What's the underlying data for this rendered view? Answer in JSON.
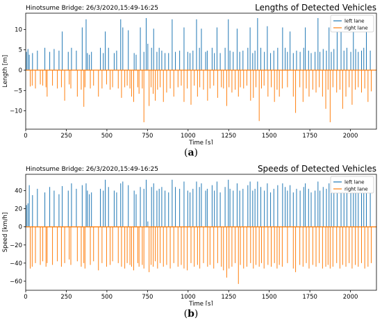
{
  "panels": [
    {
      "label_open": "(",
      "label_letter": "a",
      "label_close": ")"
    },
    {
      "label_open": "(",
      "label_letter": "b",
      "label_close": ")"
    }
  ],
  "colors": {
    "left_lane": "#1f77b4",
    "right_lane": "#ff7f0e"
  },
  "chart_data": [
    {
      "type": "bar",
      "title": "Lengths of Detected Vehicles",
      "subtitle": "Hinotsume Bridge: 26/3/2020,15:49-16:25",
      "xlabel": "Time [s]",
      "ylabel": "Length [m]",
      "xlim": [
        0,
        2160
      ],
      "ylim": [
        -14.5,
        14
      ],
      "xticks": [
        0,
        250,
        500,
        750,
        1000,
        1250,
        1500,
        1750,
        2000
      ],
      "yticks": [
        -10,
        -5,
        0,
        5,
        10
      ],
      "legend_placement": "top-right",
      "grid": false,
      "series": [
        {
          "name": "left lane",
          "x": [
            5,
            14,
            22,
            42,
            72,
            118,
            148,
            175,
            205,
            225,
            262,
            282,
            312,
            348,
            372,
            380,
            392,
            405,
            460,
            478,
            490,
            510,
            545,
            560,
            585,
            598,
            632,
            668,
            680,
            706,
            728,
            742,
            752,
            775,
            788,
            808,
            822,
            838,
            858,
            880,
            902,
            922,
            948,
            975,
            998,
            1012,
            1030,
            1052,
            1070,
            1082,
            1108,
            1118,
            1148,
            1162,
            1178,
            1198,
            1228,
            1248,
            1258,
            1278,
            1302,
            1318,
            1338,
            1368,
            1382,
            1398,
            1412,
            1428,
            1448,
            1470,
            1488,
            1508,
            1528,
            1552,
            1582,
            1598,
            1612,
            1628,
            1648,
            1668,
            1690,
            1712,
            1722,
            1742,
            1758,
            1782,
            1800,
            1812,
            1832,
            1852,
            1868,
            1882,
            1898,
            1918,
            1942,
            1960,
            1978,
            2002,
            2018,
            2032,
            2048,
            2068,
            2082,
            2098,
            2122
          ],
          "values": [
            4.5,
            5.2,
            3.8,
            4.2,
            4.8,
            5.5,
            4.5,
            5.2,
            4.8,
            9.5,
            4.5,
            5.5,
            4.8,
            10.5,
            12.5,
            4.2,
            3.8,
            4.5,
            5.5,
            4.2,
            9.5,
            5.5,
            4.2,
            4.8,
            12.5,
            10.5,
            9.8,
            4.2,
            3.8,
            10.5,
            4.5,
            12.8,
            6.5,
            5.5,
            10.2,
            4.5,
            5.5,
            4.8,
            4.2,
            4.2,
            12.5,
            4.5,
            4.8,
            10.5,
            4.5,
            4.2,
            4.8,
            12.5,
            5.5,
            10.2,
            4.5,
            4.8,
            5.5,
            4.2,
            10.5,
            4.2,
            5.5,
            12.5,
            4.8,
            4.5,
            10.2,
            4.5,
            4.8,
            5.5,
            10.5,
            4.2,
            4.8,
            12.8,
            5.5,
            4.5,
            10.8,
            4.2,
            4.8,
            5.5,
            10.5,
            5.5,
            4.5,
            9.5,
            4.2,
            4.8,
            4.5,
            5.5,
            10.5,
            4.8,
            4.2,
            4.5,
            12.8,
            4.5,
            5.2,
            4.8,
            10.5,
            4.5,
            5.2,
            10.5,
            12.8,
            4.8,
            5.5,
            4.5,
            10.5,
            5.2,
            4.5,
            4.8,
            5.5,
            12.2,
            4.8
          ]
        },
        {
          "name": "right lane",
          "x": [
            28,
            40,
            60,
            90,
            105,
            125,
            132,
            165,
            195,
            220,
            240,
            268,
            278,
            318,
            342,
            358,
            365,
            398,
            418,
            448,
            470,
            498,
            520,
            535,
            570,
            590,
            610,
            625,
            642,
            652,
            665,
            690,
            698,
            718,
            728,
            760,
            772,
            785,
            798,
            812,
            828,
            848,
            868,
            890,
            912,
            938,
            958,
            975,
            995,
            1018,
            1038,
            1058,
            1072,
            1095,
            1120,
            1135,
            1158,
            1182,
            1205,
            1218,
            1238,
            1252,
            1270,
            1290,
            1310,
            1322,
            1342,
            1362,
            1385,
            1402,
            1418,
            1438,
            1452,
            1468,
            1492,
            1512,
            1532,
            1548,
            1562,
            1580,
            1612,
            1648,
            1662,
            1688,
            1708,
            1728,
            1745,
            1768,
            1788,
            1808,
            1828,
            1848,
            1862,
            1875,
            1892,
            1915,
            1935,
            1952,
            1972,
            1992,
            2010,
            2030,
            2048,
            2068,
            2088,
            2108,
            2128
          ],
          "values": [
            -4.0,
            -3.8,
            -4.5,
            -3.5,
            -3.8,
            -4.2,
            -6.5,
            -3.8,
            -4.5,
            -4.2,
            -7.5,
            -3.5,
            -4.5,
            -6.5,
            -4.8,
            -9.0,
            -4.2,
            -4.5,
            -3.8,
            -6.5,
            -4.5,
            -3.5,
            -4.8,
            -4.2,
            -4.5,
            -6.8,
            -4.2,
            -3.8,
            -4.5,
            -6.5,
            -7.8,
            -4.2,
            -5.8,
            -4.5,
            -12.8,
            -8.8,
            -4.2,
            -5.8,
            -7.5,
            -4.8,
            -4.2,
            -7.8,
            -5.5,
            -4.5,
            -6.5,
            -4.2,
            -3.8,
            -7.8,
            -4.5,
            -8.5,
            -3.8,
            -6.5,
            -4.2,
            -4.8,
            -7.5,
            -4.5,
            -3.8,
            -6.8,
            -4.2,
            -4.5,
            -8.8,
            -4.2,
            -5.5,
            -4.8,
            -6.5,
            -4.2,
            -4.5,
            -3.8,
            -7.5,
            -6.8,
            -4.2,
            -12.5,
            -4.5,
            -3.8,
            -6.5,
            -4.2,
            -7.8,
            -4.8,
            -6.5,
            -4.5,
            -4.2,
            -6.5,
            -10.5,
            -4.2,
            -7.8,
            -4.5,
            -6.5,
            -4.8,
            -5.5,
            -4.2,
            -6.5,
            -9.5,
            -4.8,
            -12.8,
            -4.2,
            -5.5,
            -4.8,
            -9.5,
            -6.5,
            -4.2,
            -8.5,
            -4.8,
            -4.2,
            -5.5,
            -4.5,
            -7.8,
            -5.2
          ]
        }
      ]
    },
    {
      "type": "bar",
      "title": "Speeds of Detected Vehicles",
      "subtitle": "Hinotsume Bridge: 26/3/2020,15:49-16:25",
      "xlabel": "Time [s]",
      "ylabel": "Speed [km/h]",
      "xlim": [
        0,
        2160
      ],
      "ylim": [
        -70,
        58
      ],
      "xticks": [
        0,
        250,
        500,
        750,
        1000,
        1250,
        1500,
        1750,
        2000
      ],
      "yticks": [
        -60,
        -40,
        -20,
        0,
        20,
        40
      ],
      "legend_placement": "top-right",
      "grid": false,
      "series": [
        {
          "name": "left lane",
          "x": [
            5,
            14,
            22,
            42,
            72,
            118,
            148,
            175,
            205,
            225,
            262,
            282,
            312,
            348,
            372,
            380,
            392,
            405,
            460,
            478,
            490,
            510,
            545,
            560,
            585,
            598,
            632,
            668,
            680,
            706,
            728,
            742,
            752,
            775,
            788,
            808,
            822,
            838,
            858,
            880,
            902,
            922,
            948,
            975,
            998,
            1012,
            1030,
            1052,
            1070,
            1082,
            1108,
            1118,
            1148,
            1162,
            1178,
            1198,
            1228,
            1248,
            1258,
            1278,
            1302,
            1318,
            1338,
            1368,
            1382,
            1398,
            1412,
            1428,
            1448,
            1470,
            1488,
            1508,
            1528,
            1552,
            1582,
            1598,
            1612,
            1628,
            1648,
            1668,
            1690,
            1712,
            1722,
            1742,
            1758,
            1782,
            1800,
            1812,
            1832,
            1852,
            1868,
            1882,
            1898,
            1918,
            1942,
            1960,
            1978,
            2002,
            2018,
            2032,
            2048,
            2068,
            2082,
            2098,
            2122
          ],
          "values": [
            24,
            26,
            46,
            35,
            42,
            38,
            44,
            40,
            36,
            45,
            40,
            48,
            42,
            46,
            48,
            40,
            36,
            38,
            42,
            40,
            52,
            44,
            40,
            38,
            48,
            50,
            46,
            40,
            36,
            44,
            42,
            52,
            6,
            44,
            48,
            40,
            42,
            44,
            40,
            38,
            52,
            44,
            42,
            50,
            40,
            38,
            42,
            50,
            44,
            48,
            40,
            42,
            46,
            40,
            50,
            38,
            44,
            52,
            42,
            40,
            48,
            40,
            42,
            46,
            50,
            40,
            42,
            50,
            44,
            40,
            48,
            38,
            42,
            46,
            48,
            44,
            40,
            46,
            38,
            42,
            40,
            44,
            48,
            42,
            38,
            40,
            50,
            40,
            44,
            42,
            48,
            40,
            44,
            48,
            52,
            42,
            44,
            40,
            48,
            44,
            40,
            42,
            44,
            50,
            42
          ]
        },
        {
          "name": "right lane",
          "x": [
            28,
            40,
            60,
            90,
            105,
            125,
            132,
            165,
            195,
            220,
            240,
            268,
            278,
            318,
            342,
            358,
            365,
            398,
            418,
            448,
            470,
            498,
            520,
            535,
            570,
            590,
            610,
            625,
            642,
            652,
            665,
            690,
            698,
            718,
            728,
            760,
            772,
            785,
            798,
            812,
            828,
            848,
            868,
            890,
            912,
            938,
            958,
            975,
            995,
            1018,
            1038,
            1058,
            1072,
            1095,
            1120,
            1135,
            1158,
            1182,
            1205,
            1218,
            1238,
            1252,
            1270,
            1290,
            1310,
            1322,
            1342,
            1362,
            1385,
            1402,
            1418,
            1438,
            1452,
            1468,
            1492,
            1512,
            1532,
            1548,
            1562,
            1580,
            1612,
            1648,
            1662,
            1688,
            1708,
            1728,
            1745,
            1768,
            1788,
            1808,
            1828,
            1848,
            1862,
            1875,
            1892,
            1915,
            1935,
            1952,
            1972,
            1992,
            2010,
            2030,
            2048,
            2068,
            2088,
            2108,
            2128
          ],
          "values": [
            -46,
            -44,
            -40,
            -42,
            -38,
            -44,
            -40,
            -42,
            -38,
            -44,
            -40,
            -36,
            -42,
            -38,
            -44,
            -40,
            -46,
            -42,
            -38,
            -48,
            -40,
            -44,
            -42,
            -38,
            -40,
            -44,
            -46,
            -40,
            -42,
            -44,
            -48,
            -40,
            -44,
            -42,
            -46,
            -50,
            -42,
            -44,
            -38,
            -46,
            -40,
            -44,
            -42,
            -46,
            -40,
            -44,
            -42,
            -46,
            -48,
            -40,
            -44,
            -42,
            -46,
            -40,
            -44,
            -42,
            -46,
            -40,
            -44,
            -48,
            -56,
            -46,
            -44,
            -40,
            -63,
            -42,
            -46,
            -44,
            -40,
            -46,
            -42,
            -44,
            -40,
            -46,
            -42,
            -44,
            -40,
            -46,
            -42,
            -44,
            -40,
            -46,
            -50,
            -42,
            -44,
            -40,
            -46,
            -42,
            -44,
            -40,
            -46,
            -44,
            -42,
            -46,
            -44,
            -40,
            -46,
            -42,
            -44,
            -40,
            -46,
            -42,
            -44,
            -40,
            -46,
            -44,
            -40
          ]
        }
      ]
    }
  ]
}
